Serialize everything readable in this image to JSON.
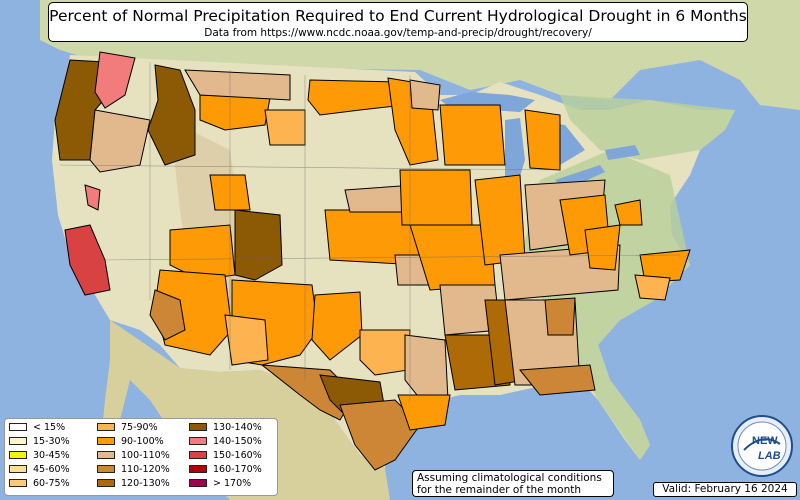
{
  "title": {
    "main": "Percent of Normal Precipitation Required to End Current Hydrological Drought in 6 Months",
    "subtitle": "Data from https://www.ncdc.noaa.gov/temp-and-precip/drought/recovery/"
  },
  "legend": {
    "items": [
      {
        "label": "< 15%",
        "color": "#ffffff"
      },
      {
        "label": "15-30%",
        "color": "#fff6c8"
      },
      {
        "label": "30-45%",
        "color": "#f5f500"
      },
      {
        "label": "45-60%",
        "color": "#fbe08f"
      },
      {
        "label": "60-75%",
        "color": "#fdc97a"
      },
      {
        "label": "75-90%",
        "color": "#fdb450"
      },
      {
        "label": "90-100%",
        "color": "#fd9a06"
      },
      {
        "label": "100-110%",
        "color": "#e1b98c"
      },
      {
        "label": "110-120%",
        "color": "#cd8636"
      },
      {
        "label": "120-130%",
        "color": "#ad6a06"
      },
      {
        "label": "130-140%",
        "color": "#8c5a04"
      },
      {
        "label": "140-150%",
        "color": "#f27b7b"
      },
      {
        "label": "150-160%",
        "color": "#d84242"
      },
      {
        "label": "160-170%",
        "color": "#b40000"
      },
      {
        "label": "> 170%",
        "color": "#a0004e"
      }
    ]
  },
  "note": {
    "line1": "Assuming climatological conditions",
    "line2": "for the remainder of the month"
  },
  "valid": "Valid: February 16 2024",
  "logo": {
    "text_top": "NEW",
    "text_bottom": "LAB"
  },
  "colors": {
    "ocean": "#8fb3e0",
    "land": "#e6e2c0",
    "terrain_green": "#b9cf9a",
    "lakes": "#7fa6d9"
  }
}
